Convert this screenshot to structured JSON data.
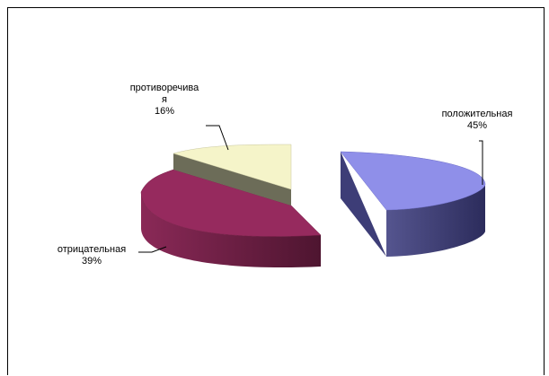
{
  "chart_data": {
    "type": "pie",
    "style": "3d-exploded",
    "categories": [
      "положительная",
      "отрицательная",
      "противоречивая"
    ],
    "values": [
      45,
      39,
      16
    ],
    "value_labels": [
      "45%",
      "39%",
      "16%"
    ],
    "label_lines": [
      [
        "положительная",
        "45%"
      ],
      [
        "отрицательная",
        "39%"
      ],
      [
        "противоречива",
        "я",
        "16%"
      ]
    ],
    "colors": {
      "top": [
        "#8f8fe9",
        "#962a5e",
        "#f5f4c9"
      ],
      "side": [
        "#3d3d77",
        "#5c1a37",
        "#6c6c58"
      ]
    }
  }
}
